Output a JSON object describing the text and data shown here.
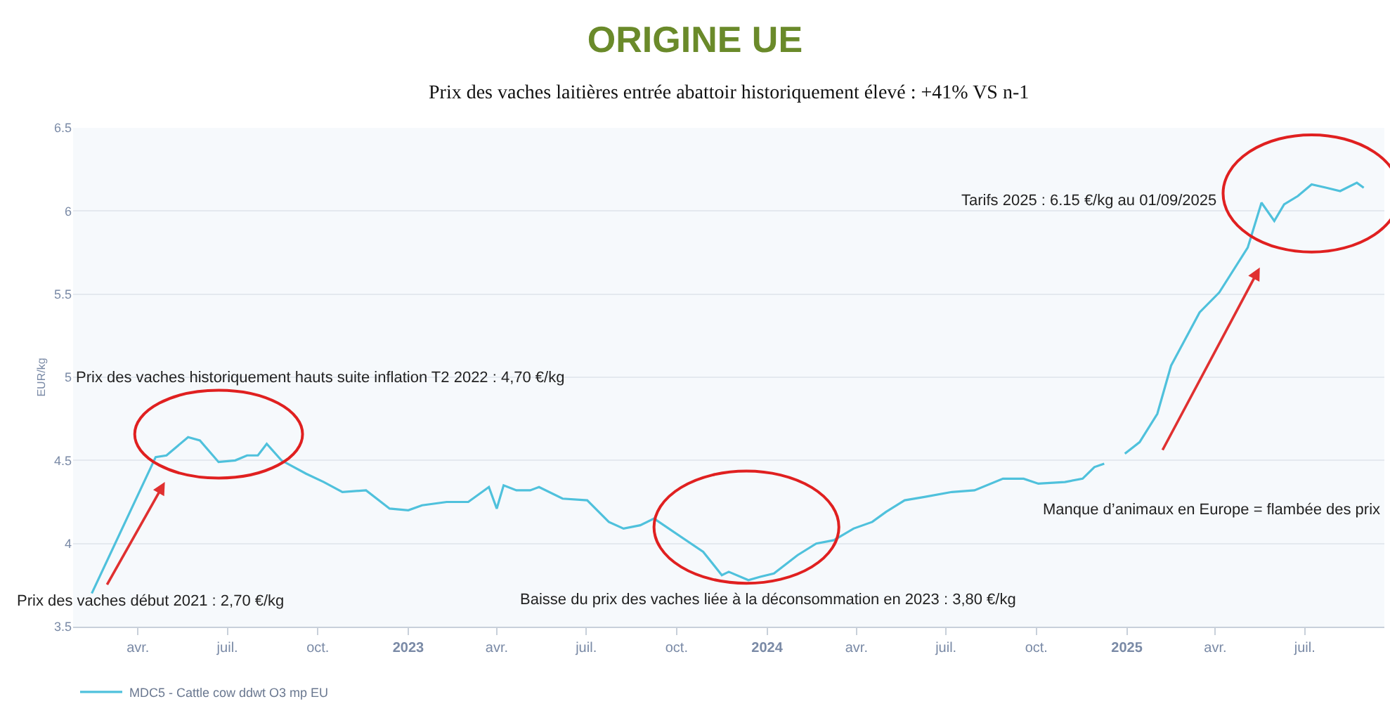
{
  "chart_data": {
    "type": "line",
    "title": "ORIGINE UE",
    "subtitle": "Prix des vaches laitières entrée abattoir historiquement élevé : +41% VS n-1",
    "ylabel": "EUR/kg",
    "annotations": [
      "Prix des vaches historiquement hauts suite inflation T2 2022 : 4,70 €/kg",
      "Prix des vaches début 2021 : 2,70 €/kg",
      "Baisse du prix des vaches liée à la déconsommation en 2023 : 3,80 €/kg",
      "Manque d’animaux en Europe = flambée des prix",
      "Tarifs 2025 : 6.15 €/kg au 01/09/2025"
    ],
    "x": [
      "2022-02-13",
      "2022-04-19",
      "2022-04-30",
      "2022-05-22",
      "2022-06-03",
      "2022-06-22",
      "2022-07-09",
      "2022-07-21",
      "2022-08-01",
      "2022-08-10",
      "2022-08-25",
      "2022-09-19",
      "2022-10-07",
      "2022-10-26",
      "2022-11-19",
      "2022-12-13",
      "2023-01-01",
      "2023-01-15",
      "2023-02-09",
      "2023-03-03",
      "2023-03-24",
      "2023-04-01",
      "2023-04-08",
      "2023-04-21",
      "2023-05-05",
      "2023-05-14",
      "2023-06-07",
      "2023-07-02",
      "2023-07-24",
      "2023-08-08",
      "2023-08-25",
      "2023-09-08",
      "2023-10-28",
      "2023-11-16",
      "2023-11-23",
      "2023-12-13",
      "2023-12-25",
      "2024-01-08",
      "2024-02-01",
      "2024-02-20",
      "2024-03-09",
      "2024-03-29",
      "2024-04-17",
      "2024-05-01",
      "2024-05-20",
      "2024-06-09",
      "2024-07-07",
      "2024-07-30",
      "2024-08-28",
      "2024-09-18",
      "2024-10-03",
      "2024-10-30",
      "2024-11-17",
      "2024-11-29",
      "2024-12-09",
      "2024-12-20",
      "2024-12-30",
      "2025-01-14",
      "2025-02-01",
      "2025-02-15",
      "2025-03-16",
      "2025-04-05",
      "2025-05-04",
      "2025-05-18",
      "2025-05-31",
      "2025-06-10",
      "2025-06-24",
      "2025-07-08",
      "2025-07-23",
      "2025-08-06",
      "2025-08-23",
      "2025-08-30"
    ],
    "series": [
      {
        "name": "MDC5 - Cattle cow ddwt O3 mp EU",
        "color": "#4fc1dc",
        "values": [
          3.7,
          4.52,
          4.53,
          4.64,
          4.62,
          4.49,
          4.5,
          4.53,
          4.53,
          4.6,
          4.5,
          4.42,
          4.37,
          4.31,
          4.32,
          4.21,
          4.2,
          4.23,
          4.25,
          4.25,
          4.34,
          4.21,
          4.35,
          4.32,
          4.32,
          4.34,
          4.27,
          4.26,
          4.13,
          4.09,
          4.11,
          4.15,
          3.95,
          3.81,
          3.83,
          3.78,
          3.8,
          3.82,
          3.93,
          4.0,
          4.02,
          4.09,
          4.13,
          4.19,
          4.26,
          4.28,
          4.31,
          4.32,
          4.39,
          4.39,
          4.36,
          4.37,
          4.39,
          4.46,
          4.48,
          null,
          4.54,
          4.61,
          4.78,
          5.07,
          5.39,
          5.51,
          5.78,
          6.05,
          5.94,
          6.04,
          6.09,
          6.16,
          6.14,
          6.12,
          6.17,
          6.14
        ]
      }
    ],
    "xlim": [
      "2022-01-25",
      "2025-09-20"
    ],
    "xticks": [
      {
        "value": "2022-04-01",
        "label": "avr."
      },
      {
        "value": "2022-07-01",
        "label": "juil."
      },
      {
        "value": "2022-10-01",
        "label": "oct."
      },
      {
        "value": "2023-01-01",
        "label": "2023"
      },
      {
        "value": "2023-04-01",
        "label": "avr."
      },
      {
        "value": "2023-07-01",
        "label": "juil."
      },
      {
        "value": "2023-10-01",
        "label": "oct."
      },
      {
        "value": "2024-01-01",
        "label": "2024"
      },
      {
        "value": "2024-04-01",
        "label": "avr."
      },
      {
        "value": "2024-07-01",
        "label": "juil."
      },
      {
        "value": "2024-10-01",
        "label": "oct."
      },
      {
        "value": "2025-01-01",
        "label": "2025"
      },
      {
        "value": "2025-04-01",
        "label": "avr."
      },
      {
        "value": "2025-07-01",
        "label": "juil."
      }
    ],
    "ylim": [
      3.5,
      6.5
    ],
    "yticks": [
      3.5,
      4,
      4.5,
      5,
      5.5,
      6,
      6.5
    ],
    "grid": "y",
    "legend": "bottom left"
  }
}
